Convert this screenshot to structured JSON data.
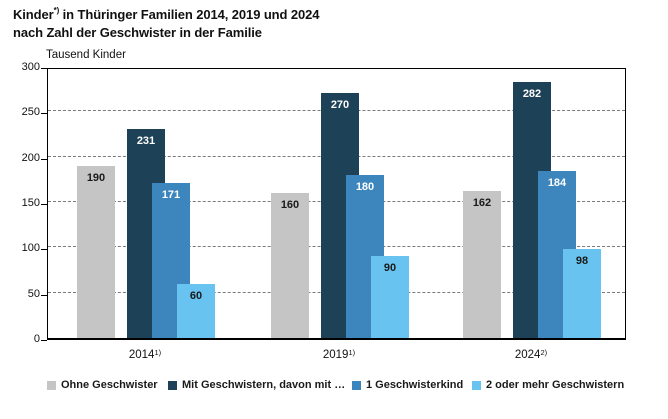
{
  "header": {
    "title_prefix": "Kinder",
    "title_footnote_mark": "*)",
    "title_line1_rest": " in Thüringer Familien 2014, 2019 und 2024",
    "title_line2": "nach Zahl der Geschwister in der Familie"
  },
  "chart_data": {
    "type": "bar",
    "title": "Kinder*) in Thüringer Familien 2014, 2019 und 2024 nach Zahl der Geschwister in der Familie",
    "ylabel": "Tausend Kinder",
    "xlabel": "",
    "categories": [
      "2014",
      "2019",
      "2024"
    ],
    "category_footnotes": [
      "1)",
      "1)",
      "2)"
    ],
    "series": [
      {
        "key": "ohne-geschwister",
        "name": "Ohne Geschwister",
        "color": "#c5c5c6",
        "label_color": "#1a1a1a",
        "values": [
          190,
          160,
          162
        ]
      },
      {
        "key": "mit-geschwistern",
        "name": "Mit Geschwistern, davon mit …",
        "color": "#1d4156",
        "label_color": "#ffffff",
        "values": [
          231,
          270,
          282
        ]
      },
      {
        "key": "ein-geschwisterkind",
        "name": "1 Geschwisterkind",
        "color": "#3c85bd",
        "label_color": "#ffffff",
        "values": [
          171,
          180,
          184
        ]
      },
      {
        "key": "zwei-oder-mehr",
        "name": "2 oder mehr Geschwistern",
        "color": "#69c3f0",
        "label_color": "#1a1a1a",
        "values": [
          60,
          90,
          98
        ]
      }
    ],
    "ylim": [
      0,
      300
    ],
    "ytick_step": 50,
    "grid": "horizontal-dashed",
    "legend_position": "bottom",
    "colors": {
      "axis": "#000000",
      "gridline": "#7a7a7a",
      "background": "#ffffff"
    }
  }
}
